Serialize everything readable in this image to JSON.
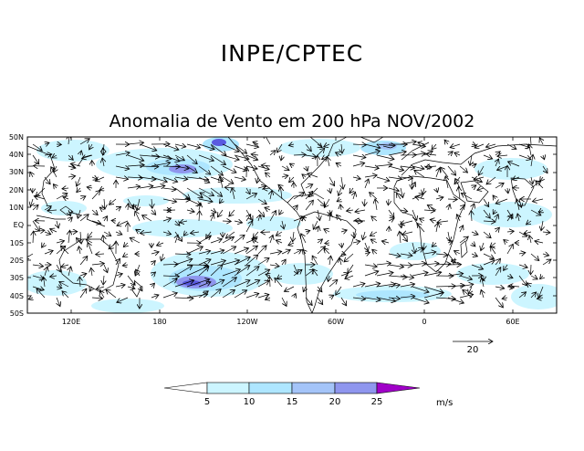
{
  "header": {
    "organization": "INPE/CPTEC"
  },
  "map": {
    "title": "Anomalia de Vento em 200 hPa NOV/2002",
    "lat_labels": [
      "50N",
      "40N",
      "30N",
      "20N",
      "10N",
      "EQ",
      "10S",
      "20S",
      "30S",
      "40S",
      "50S"
    ],
    "lon_labels": [
      "120E",
      "180",
      "120W",
      "60W",
      "0",
      "60E"
    ]
  },
  "reference_vector": {
    "label": "20"
  },
  "colorbar": {
    "levels": [
      "5",
      "10",
      "15",
      "20",
      "25"
    ],
    "unit": "m/s",
    "colors": [
      "#ffffff",
      "#ccf5ff",
      "#aee6ff",
      "#a4c4f8",
      "#8f96ee",
      "#5a5ae0",
      "#a000c8"
    ]
  }
}
